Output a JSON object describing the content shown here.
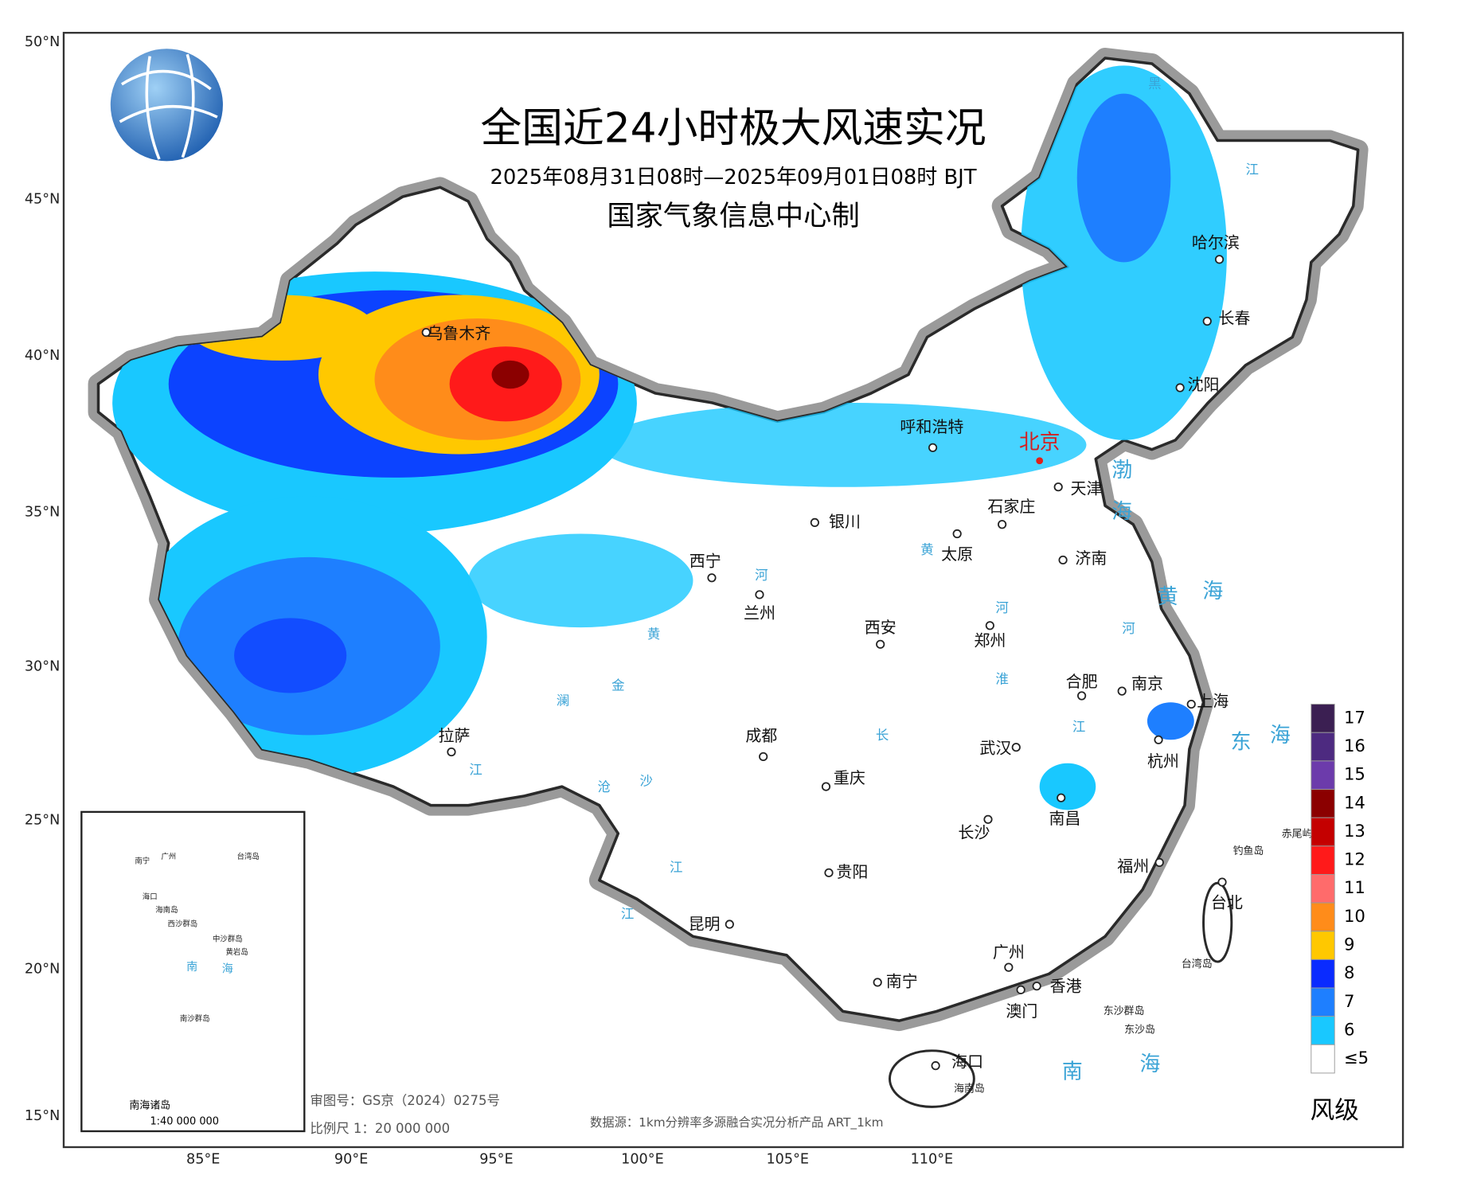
{
  "header": {
    "title": "全国近24小时极大风速实况",
    "subtitle": "2025年08月31日08时—2025年09月01日08时 BJT",
    "producer": "国家气象信息中心制"
  },
  "axes": {
    "lat_labels": [
      "50°N",
      "45°N",
      "40°N",
      "35°N",
      "30°N",
      "25°N",
      "20°N",
      "15°N"
    ],
    "lon_labels": [
      "85°E",
      "90°E",
      "95°E",
      "100°E",
      "105°E",
      "110°E"
    ]
  },
  "cities": [
    "乌鲁木齐",
    "呼和浩特",
    "北京",
    "天津",
    "石家庄",
    "银川",
    "太原",
    "济南",
    "西宁",
    "兰州",
    "郑州",
    "西安",
    "合肥",
    "南京",
    "上海",
    "拉萨",
    "成都",
    "武汉",
    "杭州",
    "重庆",
    "南昌",
    "长沙",
    "福州",
    "贵阳",
    "台北",
    "昆明",
    "广州",
    "南宁",
    "香港",
    "澳门",
    "海口",
    "哈尔滨",
    "长春",
    "沈阳"
  ],
  "water_labels": [
    "渤",
    "海",
    "黄",
    "海",
    "东",
    "海",
    "南",
    "海",
    "黄",
    "河",
    "河",
    "黄",
    "长",
    "江",
    "淮",
    "河",
    "江",
    "黑",
    "金",
    "沙",
    "江",
    "江",
    "澜",
    "沧",
    "江"
  ],
  "island_labels": [
    "钓鱼岛",
    "赤尾屿",
    "台湾岛",
    "东沙群岛",
    "东沙岛",
    "海南岛"
  ],
  "inset": {
    "labels": [
      "南宁",
      "广州",
      "台湾岛",
      "海口",
      "海南岛",
      "西沙群岛",
      "中沙群岛",
      "黄岩岛",
      "南沙群岛",
      "南",
      "海"
    ],
    "name": "南海诸岛",
    "scale": "1:40 000 000"
  },
  "notes": {
    "review_no": "审图号：GS京（2024）0275号",
    "scale": "比例尺 1：20 000 000",
    "source": "数据源：1km分辨率多源融合实况分析产品 ART_1km"
  },
  "legend": {
    "title": "风级",
    "levels": [
      {
        "label": "17",
        "color": "#3b1f52"
      },
      {
        "label": "16",
        "color": "#4d2a80"
      },
      {
        "label": "15",
        "color": "#6c3bab"
      },
      {
        "label": "14",
        "color": "#8b0000"
      },
      {
        "label": "13",
        "color": "#c40000"
      },
      {
        "label": "12",
        "color": "#ff1a1a"
      },
      {
        "label": "11",
        "color": "#ff6b6b"
      },
      {
        "label": "10",
        "color": "#ff8c1a"
      },
      {
        "label": "9",
        "color": "#ffc800"
      },
      {
        "label": "8",
        "color": "#0a2bff"
      },
      {
        "label": "7",
        "color": "#1e7fff"
      },
      {
        "label": "6",
        "color": "#19c8ff"
      },
      {
        "label": "≤5",
        "color": "#ffffff"
      }
    ]
  }
}
